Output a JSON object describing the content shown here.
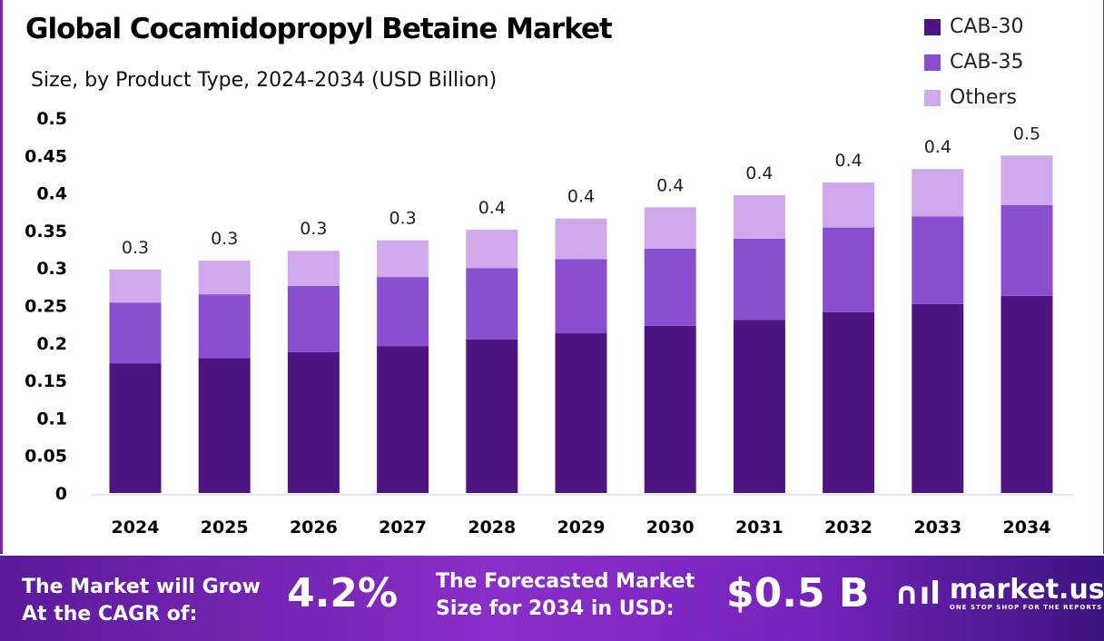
{
  "chart_data": {
    "type": "bar",
    "stacked": true,
    "title": "Global Cocamidopropyl Betaine Market",
    "subtitle": "Size, by Product Type, 2024-2034 (USD Billion)",
    "xlabel": "",
    "ylabel": "",
    "ylim": [
      0,
      0.5
    ],
    "yticks": [
      "0",
      "0.05",
      "0.1",
      "0.15",
      "0.2",
      "0.25",
      "0.3",
      "0.35",
      "0.4",
      "0.45",
      "0.5"
    ],
    "grid": false,
    "legend_position": "top-right",
    "categories": [
      "2024",
      "2025",
      "2026",
      "2027",
      "2028",
      "2029",
      "2030",
      "2031",
      "2032",
      "2033",
      "2034"
    ],
    "series": [
      {
        "name": "CAB-30",
        "color": "#4e1582",
        "values": [
          0.173,
          0.18,
          0.188,
          0.196,
          0.205,
          0.213,
          0.223,
          0.231,
          0.241,
          0.252,
          0.263
        ]
      },
      {
        "name": "CAB-35",
        "color": "#8a4fcf",
        "values": [
          0.081,
          0.085,
          0.088,
          0.092,
          0.095,
          0.099,
          0.103,
          0.108,
          0.113,
          0.117,
          0.121
        ]
      },
      {
        "name": "Others",
        "color": "#d0a8ec",
        "values": [
          0.044,
          0.045,
          0.047,
          0.049,
          0.051,
          0.054,
          0.055,
          0.058,
          0.06,
          0.063,
          0.066
        ]
      }
    ],
    "total_labels": [
      "0.3",
      "0.3",
      "0.3",
      "0.3",
      "0.4",
      "0.4",
      "0.4",
      "0.4",
      "0.4",
      "0.4",
      "0.5"
    ]
  },
  "footer": {
    "cagr_label_line1": "The Market will Grow",
    "cagr_label_line2": "At the CAGR of:",
    "cagr_value": "4.2%",
    "forecast_label_line1": "The Forecasted Market",
    "forecast_label_line2": "Size for 2034 in USD:",
    "forecast_value": "$0.5 B",
    "brand": "market.us",
    "brand_tagline": "ONE STOP SHOP FOR THE REPORTS"
  }
}
